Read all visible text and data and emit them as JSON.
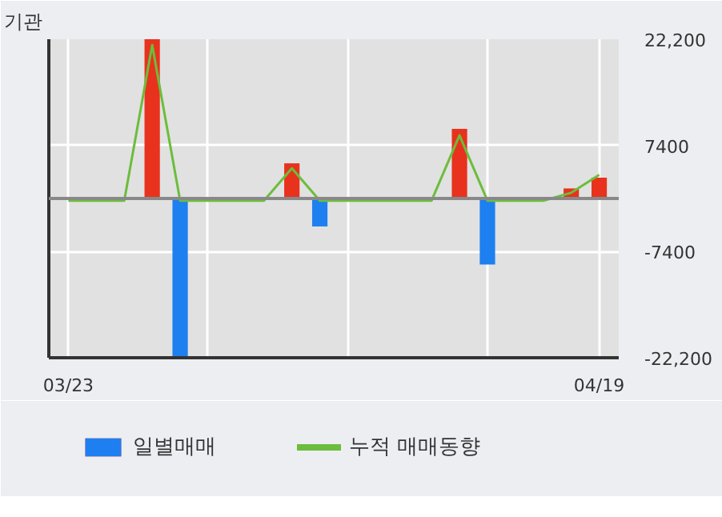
{
  "chart_data": {
    "type": "bar",
    "title": "기관",
    "categories": [
      "03/23",
      null,
      null,
      null,
      null,
      null,
      null,
      null,
      null,
      null,
      null,
      null,
      null,
      null,
      null,
      null,
      null,
      null,
      null,
      "04/19"
    ],
    "series": [
      {
        "name": "일별매매",
        "colors": [
          "#e8321e",
          "#e8321e",
          "#e8321e",
          "#e8321e",
          "#1e7ff0",
          "#e8321e",
          "#e8321e",
          "#e8321e",
          "#e8321e",
          "#1e7ff0",
          "#e8321e",
          "#e8321e",
          "#e8321e",
          "#e8321e",
          "#e8321e",
          "#1e7ff0",
          "#e8321e",
          "#e8321e",
          "#e8321e",
          "#e8321e"
        ],
        "values": [
          0,
          0,
          0,
          22200,
          -22200,
          0,
          0,
          0,
          4900,
          -3900,
          0,
          0,
          0,
          0,
          9700,
          -9200,
          0,
          0,
          1400,
          2900
        ]
      },
      {
        "name": "누적 매매동향",
        "type": "line",
        "color": "#6cbd3c",
        "values": [
          -300,
          -300,
          -300,
          21400,
          -300,
          -300,
          -300,
          -300,
          4200,
          -300,
          -300,
          -300,
          -300,
          -300,
          8800,
          -300,
          -300,
          -300,
          800,
          3300
        ]
      }
    ],
    "ylim": [
      -22200,
      22200
    ],
    "yticks": [
      {
        "value": 22200,
        "label": "22,200"
      },
      7400,
      -7400,
      {
        "value": -22200,
        "label": "-22,200"
      }
    ],
    "ref_lines": [
      {
        "axis": "y",
        "value": 0,
        "color": "#888888"
      }
    ],
    "grid": true,
    "legend": "bottom"
  }
}
